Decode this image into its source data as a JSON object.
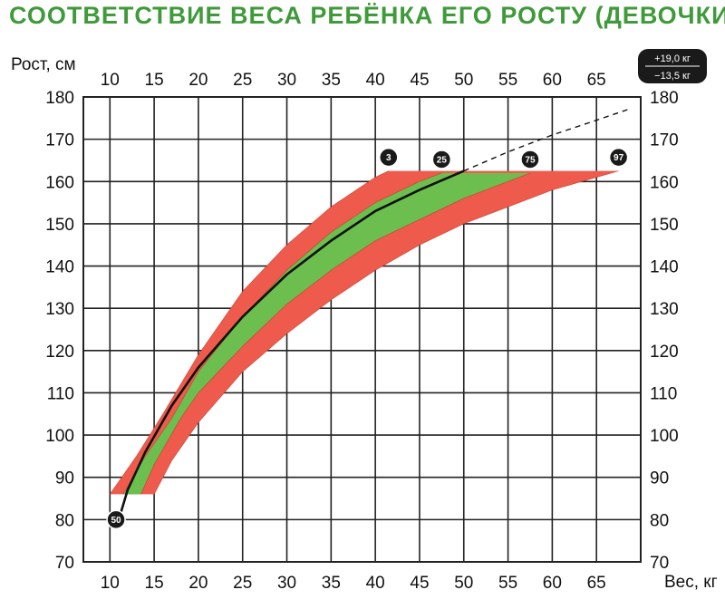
{
  "title": "СООТВЕТСТВИЕ ВЕСА РЕБЁНКА ЕГО РОСТУ (ДЕВОЧКИ)",
  "colors": {
    "title": "#3f9a3a",
    "outer_band": "#ee5b4c",
    "inner_band": "#6cbf4e",
    "median_line": "#111111",
    "grid": "#222222",
    "badge": "#1a1a1a"
  },
  "chart_data": {
    "type": "area",
    "title": "СООТВЕТСТВИЕ ВЕСА РЕБЁНКА ЕГО РОСТУ (ДЕВОЧКИ)",
    "xlabel": "Вес, кг",
    "ylabel": "Рост, см",
    "xlim": [
      7,
      70
    ],
    "ylim": [
      70,
      180
    ],
    "xticks": [
      10,
      15,
      20,
      25,
      30,
      35,
      40,
      45,
      50,
      55,
      60,
      65
    ],
    "yticks": [
      70,
      80,
      90,
      100,
      110,
      120,
      130,
      140,
      150,
      160,
      170,
      180
    ],
    "grid": true,
    "series": [
      {
        "name": "3",
        "x": [
          10.0,
          13,
          16,
          20,
          25,
          30,
          35,
          40,
          41.5
        ],
        "y": [
          86,
          95,
          105,
          119,
          134,
          145,
          154,
          161,
          162.5
        ]
      },
      {
        "name": "25",
        "x": [
          11.5,
          14,
          17,
          20,
          25,
          30,
          35,
          40,
          45,
          47.5
        ],
        "y": [
          86,
          95,
          104,
          115,
          128,
          139,
          148,
          155,
          160,
          162
        ]
      },
      {
        "name": "50",
        "x": [
          11.0,
          12,
          14,
          17,
          20,
          25,
          30,
          35,
          40,
          45,
          50
        ],
        "y": [
          80,
          87,
          96,
          107,
          116,
          128,
          138,
          146,
          153,
          158,
          162.5
        ]
      },
      {
        "name": "75",
        "x": [
          13.5,
          15,
          18,
          20,
          25,
          30,
          35,
          40,
          45,
          50,
          55,
          57.5
        ],
        "y": [
          86,
          93,
          104,
          110,
          121,
          131,
          139,
          146,
          151,
          156,
          160,
          162
        ]
      },
      {
        "name": "97",
        "x": [
          15.0,
          17,
          20,
          25,
          30,
          35,
          40,
          45,
          50,
          55,
          60,
          65,
          67.5
        ],
        "y": [
          86,
          94,
          103,
          115,
          124,
          132,
          139,
          145,
          150,
          154,
          158,
          161,
          162.5
        ]
      },
      {
        "name": "extension",
        "x": [
          50,
          55,
          60,
          65,
          68.5
        ],
        "y": [
          162.5,
          167,
          171,
          174.5,
          177
        ]
      }
    ],
    "percentile_badges": [
      "3",
      "25",
      "50",
      "75",
      "97"
    ],
    "callout": {
      "upper": "+19,0 кг",
      "lower": "−13,5 кг"
    }
  }
}
